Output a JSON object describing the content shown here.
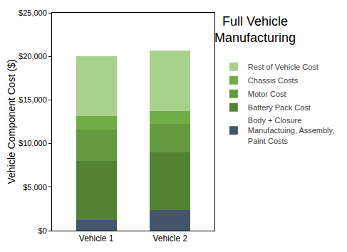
{
  "chart_data": {
    "type": "bar",
    "title": "Full Vehicle Manufacturing",
    "y_label": "Vehicle Component Cost ($)",
    "categories": [
      "Vehicle 1",
      "Vehicle 2"
    ],
    "stacked": true,
    "grid": false,
    "legend": "right",
    "ylim": [
      0,
      25000
    ],
    "yticks": [
      {
        "value": 0,
        "label": "$0"
      },
      {
        "value": 5000,
        "label": "$5,000"
      },
      {
        "value": 10000,
        "label": "$10,000"
      },
      {
        "value": 15000,
        "label": "$15,000"
      },
      {
        "value": 20000,
        "label": "$20,000"
      },
      {
        "value": 25000,
        "label": "$25,000"
      }
    ],
    "series": [
      {
        "name": "Body + Closure Manufactuing, Assembly, Paint Costs",
        "color": "#44546a",
        "values": [
          1200,
          2350
        ]
      },
      {
        "name": "Battery Pack Cost",
        "color": "#548235",
        "values": [
          6800,
          6600
        ]
      },
      {
        "name": "Motor Cost",
        "color": "#639a3f",
        "values": [
          3600,
          3300
        ]
      },
      {
        "name": "Chassis Costs",
        "color": "#70ad47",
        "values": [
          1550,
          1450
        ]
      },
      {
        "name": "Rest of Vehicle Cost",
        "color": "#a9d18e",
        "values": [
          6900,
          6950
        ]
      }
    ]
  }
}
